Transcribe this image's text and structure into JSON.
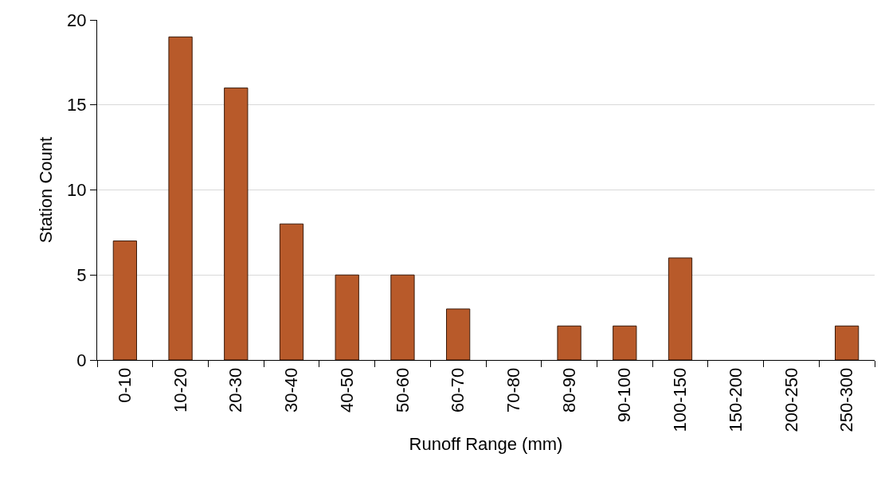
{
  "chart_data": {
    "type": "bar",
    "xlabel": "Runoff Range (mm)",
    "ylabel": "Station Count",
    "categories": [
      "0-10",
      "10-20",
      "20-30",
      "30-40",
      "40-50",
      "50-60",
      "60-70",
      "70-80",
      "80-90",
      "90-100",
      "100-150",
      "150-200",
      "200-250",
      "250-300"
    ],
    "values": [
      7,
      19,
      16,
      8,
      5,
      5,
      3,
      0,
      2,
      2,
      6,
      0,
      0,
      2
    ],
    "color": "#b85a2a",
    "ylim": [
      0,
      20
    ],
    "yticks": [
      0,
      5,
      10,
      15,
      20
    ],
    "grid": "y"
  }
}
